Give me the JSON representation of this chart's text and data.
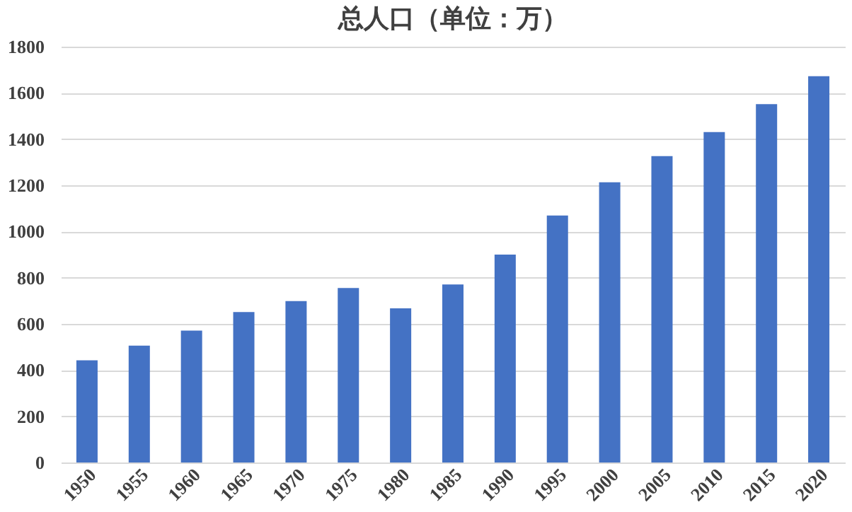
{
  "chart_data": {
    "type": "bar",
    "title": "总人口（单位：万）",
    "categories": [
      "1950",
      "1955",
      "1960",
      "1965",
      "1970",
      "1975",
      "1980",
      "1985",
      "1990",
      "1995",
      "2000",
      "2005",
      "2010",
      "2015",
      "2020"
    ],
    "values": [
      442,
      506,
      571,
      651,
      699,
      755,
      667,
      771,
      900,
      1069,
      1213,
      1326,
      1430,
      1551,
      1672
    ],
    "color": "#4472c4",
    "ylim": [
      0,
      1800
    ],
    "yticks": [
      0,
      200,
      400,
      600,
      800,
      1000,
      1200,
      1400,
      1600,
      1800
    ],
    "grid": "y"
  }
}
